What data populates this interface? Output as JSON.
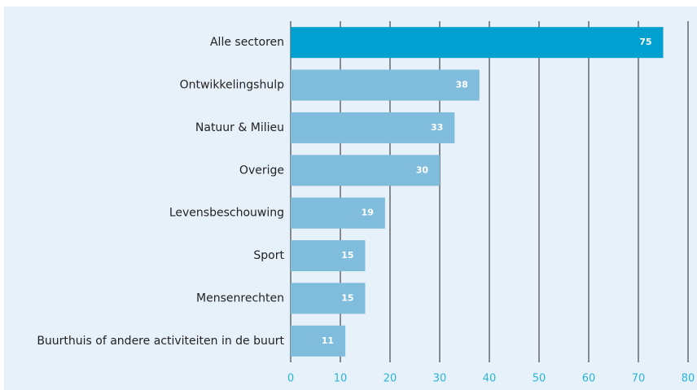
{
  "chart_data": {
    "type": "bar",
    "orientation": "horizontal",
    "categories": [
      "Alle sectoren",
      "Ontwikkelingshulp",
      "Natuur & Milieu",
      "Overige",
      "Levensbeschouwing",
      "Sport",
      "Mensenrechten",
      "Buurthuis of andere activiteiten in de buurt"
    ],
    "values": [
      75,
      38,
      33,
      30,
      19,
      15,
      15,
      11
    ],
    "colors": [
      "#00a0d0",
      "#80bddc",
      "#80bddc",
      "#80bddc",
      "#80bddc",
      "#80bddc",
      "#80bddc",
      "#80bddc"
    ],
    "xlim": [
      0,
      80
    ],
    "xticks": [
      0,
      10,
      20,
      30,
      40,
      50,
      60,
      70,
      80
    ],
    "grid": true
  }
}
